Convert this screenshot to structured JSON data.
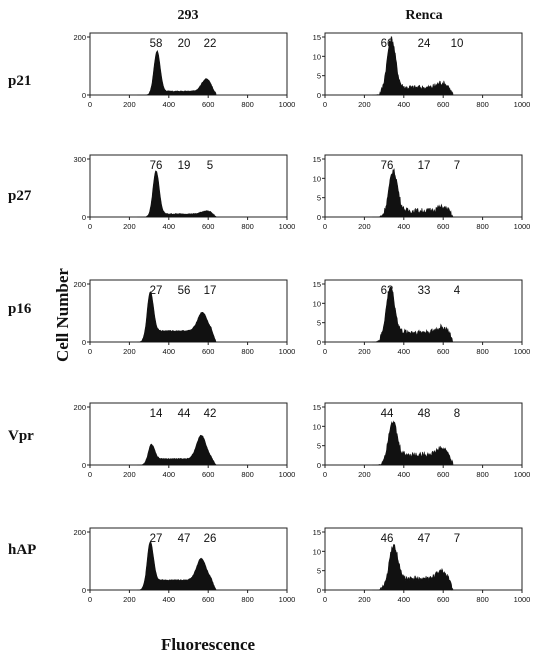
{
  "figure": {
    "columns": [
      "293",
      "Renca"
    ],
    "rows": [
      "p21",
      "p27",
      "p16",
      "Vpr",
      "hAP"
    ],
    "y_axis_label": "Cell Number",
    "x_axis_label": "Fluorescence",
    "colors": {
      "fill": "#111111",
      "axis": "#222222",
      "text": "#111111",
      "background": "#ffffff"
    }
  },
  "chart_data": [
    {
      "type": "histogram",
      "row": "p21",
      "column": "293",
      "xlim": [
        0,
        1000
      ],
      "ylim": [
        0,
        200
      ],
      "x_ticks": [
        "0",
        "200",
        "400",
        "600",
        "800",
        "1000"
      ],
      "y_ticks": [
        "0",
        "200"
      ],
      "phase_percentages": [
        "58",
        "20",
        "22"
      ],
      "g1_peak": 340,
      "g2_peak": 590,
      "g1_height": 0.68,
      "g2_height": 0.2,
      "s_level": 0.06
    },
    {
      "type": "histogram",
      "row": "p21",
      "column": "Renca",
      "xlim": [
        0,
        1000
      ],
      "ylim": [
        0,
        15
      ],
      "x_ticks": [
        "0",
        "200",
        "400",
        "600",
        "800",
        "1000"
      ],
      "y_ticks": [
        "0",
        "5",
        "10",
        "15"
      ],
      "phase_percentages": [
        "66",
        "24",
        "10"
      ],
      "g1_peak": 335,
      "g2_peak": 590,
      "g1_height": 0.85,
      "g2_height": 0.08,
      "s_level": 0.12,
      "right_edge": 650
    },
    {
      "type": "histogram",
      "row": "p27",
      "column": "293",
      "xlim": [
        0,
        1000
      ],
      "ylim": [
        0,
        300
      ],
      "x_ticks": [
        "0",
        "200",
        "400",
        "600",
        "800",
        "1000"
      ],
      "y_ticks": [
        "0",
        "300"
      ],
      "phase_percentages": [
        "76",
        "19",
        "5"
      ],
      "g1_peak": 335,
      "g2_peak": 590,
      "g1_height": 0.72,
      "g2_height": 0.05,
      "s_level": 0.05
    },
    {
      "type": "histogram",
      "row": "p27",
      "column": "Renca",
      "xlim": [
        0,
        1000
      ],
      "ylim": [
        0,
        15
      ],
      "x_ticks": [
        "0",
        "200",
        "400",
        "600",
        "800",
        "1000"
      ],
      "y_ticks": [
        "0",
        "5",
        "10",
        "15"
      ],
      "phase_percentages": [
        "76",
        "17",
        "7"
      ],
      "g1_peak": 345,
      "g2_peak": 590,
      "g1_height": 0.7,
      "g2_height": 0.06,
      "s_level": 0.1,
      "right_edge": 650
    },
    {
      "type": "histogram",
      "row": "p16",
      "column": "293",
      "xlim": [
        0,
        1000
      ],
      "ylim": [
        0,
        200
      ],
      "x_ticks": [
        "0",
        "200",
        "400",
        "600",
        "800",
        "1000"
      ],
      "y_ticks": [
        "0",
        "200"
      ],
      "phase_percentages": [
        "27",
        "56",
        "17"
      ],
      "g1_peak": 305,
      "g2_peak": 570,
      "g1_height": 0.72,
      "g2_height": 0.3,
      "s_level": 0.18
    },
    {
      "type": "histogram",
      "row": "p16",
      "column": "Renca",
      "xlim": [
        0,
        1000
      ],
      "ylim": [
        0,
        15
      ],
      "x_ticks": [
        "0",
        "200",
        "400",
        "600",
        "800",
        "1000"
      ],
      "y_ticks": [
        "0",
        "5",
        "10",
        "15"
      ],
      "phase_percentages": [
        "63",
        "33",
        "4"
      ],
      "g1_peak": 330,
      "g2_peak": 590,
      "g1_height": 0.8,
      "g2_height": 0.08,
      "s_level": 0.16,
      "right_edge": 650
    },
    {
      "type": "histogram",
      "row": "Vpr",
      "column": "293",
      "xlim": [
        0,
        1000
      ],
      "ylim": [
        0,
        200
      ],
      "x_ticks": [
        "0",
        "200",
        "400",
        "600",
        "800",
        "1000"
      ],
      "y_ticks": [
        "0",
        "200"
      ],
      "phase_percentages": [
        "14",
        "44",
        "42"
      ],
      "g1_peak": 310,
      "g2_peak": 565,
      "g1_height": 0.28,
      "g2_height": 0.38,
      "s_level": 0.1
    },
    {
      "type": "histogram",
      "row": "Vpr",
      "column": "Renca",
      "xlim": [
        0,
        1000
      ],
      "ylim": [
        0,
        15
      ],
      "x_ticks": [
        "0",
        "200",
        "400",
        "600",
        "800",
        "1000"
      ],
      "y_ticks": [
        "0",
        "5",
        "10",
        "15"
      ],
      "phase_percentages": [
        "44",
        "48",
        "8"
      ],
      "g1_peak": 340,
      "g2_peak": 590,
      "g1_height": 0.62,
      "g2_height": 0.1,
      "s_level": 0.17,
      "right_edge": 650
    },
    {
      "type": "histogram",
      "row": "hAP",
      "column": "293",
      "xlim": [
        0,
        1000
      ],
      "ylim": [
        0,
        200
      ],
      "x_ticks": [
        "0",
        "200",
        "400",
        "600",
        "800",
        "1000"
      ],
      "y_ticks": [
        "0",
        "200"
      ],
      "phase_percentages": [
        "27",
        "47",
        "26"
      ],
      "g1_peak": 305,
      "g2_peak": 565,
      "g1_height": 0.7,
      "g2_height": 0.35,
      "s_level": 0.16
    },
    {
      "type": "histogram",
      "row": "hAP",
      "column": "Renca",
      "xlim": [
        0,
        1000
      ],
      "ylim": [
        0,
        15
      ],
      "x_ticks": [
        "0",
        "200",
        "400",
        "600",
        "800",
        "1000"
      ],
      "y_ticks": [
        "0",
        "5",
        "10",
        "15"
      ],
      "phase_percentages": [
        "46",
        "47",
        "7"
      ],
      "g1_peak": 345,
      "g2_peak": 590,
      "g1_height": 0.62,
      "g2_height": 0.12,
      "s_level": 0.18,
      "right_edge": 650
    }
  ]
}
